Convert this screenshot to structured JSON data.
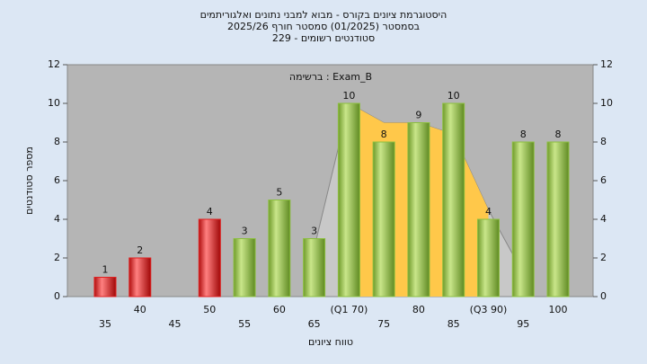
{
  "chart_data": {
    "type": "bar",
    "title": [
      "היסטוגרמת ציונים בקורס - מבוא למבני נתונים ואלגוריתמים",
      "בסמסטר  (01/2025)  סמסטר חורף 2025/26",
      "סטודנטים רשומים - 229"
    ],
    "annotation": "ברשימה : Exam_B",
    "x_label": "טווח ציונים",
    "y_label": "מספר סטודנטים",
    "categories": [
      "35",
      "40",
      "45",
      "50",
      "55",
      "60",
      "65",
      "(Q1 70)",
      "75",
      "80",
      "85",
      "(Q3 90)",
      "95",
      "100"
    ],
    "series": [
      {
        "values": [
          1,
          2,
          null,
          4,
          3,
          5,
          3,
          10,
          8,
          9,
          10,
          4,
          8,
          8
        ],
        "colors": [
          "#e02020",
          "#e02020",
          null,
          "#e02020",
          "#8cbf3f",
          "#8cbf3f",
          "#8cbf3f",
          "#8cbf3f",
          "#8cbf3f",
          "#8cbf3f",
          "#8cbf3f",
          "#8cbf3f",
          "#8cbf3f",
          "#8cbf3f"
        ]
      }
    ],
    "area": {
      "values": [
        null,
        null,
        null,
        null,
        null,
        null,
        2.5,
        10,
        9,
        9,
        8.4,
        4.5,
        1.2,
        null
      ],
      "color": "#c8c8c8",
      "highlight_color": "#ffc84a",
      "highlight_range": [
        7,
        11
      ]
    },
    "ylim": [
      0,
      12
    ],
    "yticks": [
      0,
      2,
      4,
      6,
      8,
      10,
      12
    ],
    "y2lim": [
      0,
      12
    ],
    "y2ticks": [
      0,
      2,
      4,
      6,
      8,
      10,
      12
    ],
    "plot_color": "#b5b5b5"
  }
}
